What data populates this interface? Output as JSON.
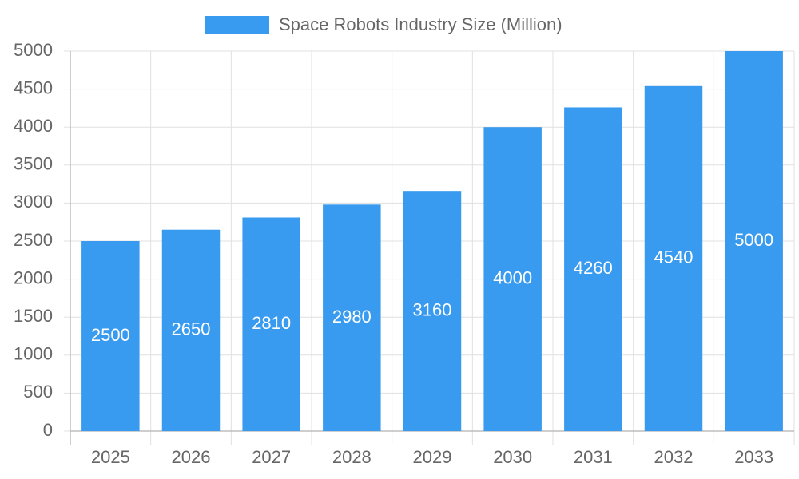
{
  "chart_data": {
    "type": "bar",
    "categories": [
      "2025",
      "2026",
      "2027",
      "2028",
      "2029",
      "2030",
      "2031",
      "2032",
      "2033"
    ],
    "series": [
      {
        "name": "Space Robots Industry Size (Million)",
        "color": "#389bef",
        "values": [
          2500,
          2650,
          2810,
          2980,
          3160,
          4000,
          4260,
          4540,
          5000
        ]
      }
    ],
    "ylim": [
      0,
      5000
    ],
    "yticks": [
      0,
      500,
      1000,
      1500,
      2000,
      2500,
      3000,
      3500,
      4000,
      4500,
      5000
    ],
    "grid": true,
    "legend": "top",
    "data_labels": true
  }
}
